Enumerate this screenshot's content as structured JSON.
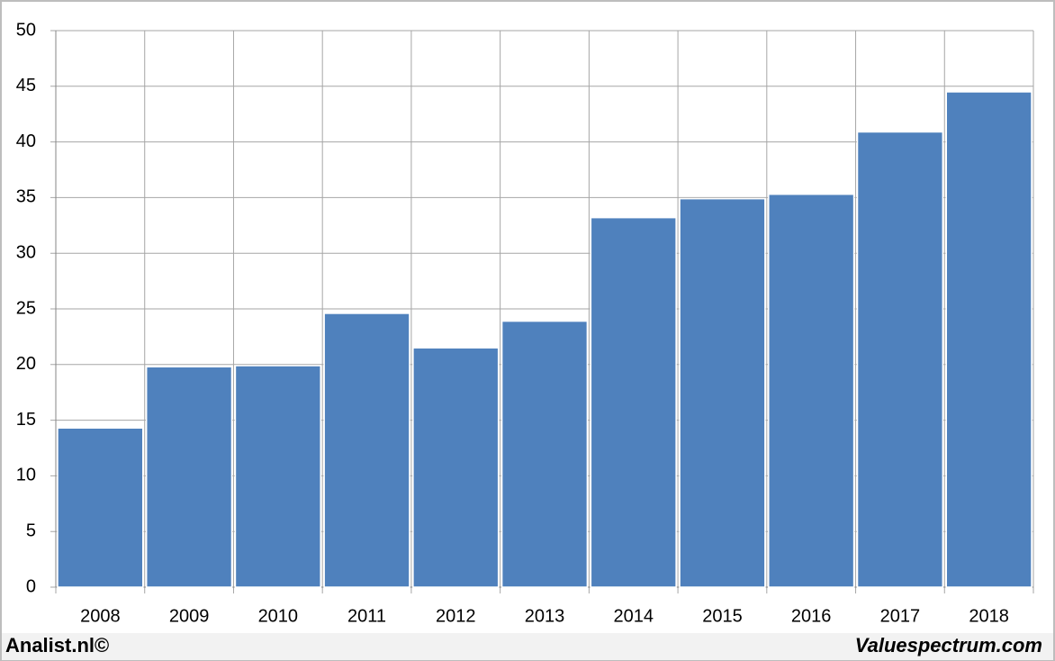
{
  "chart_data": {
    "type": "bar",
    "categories": [
      "2008",
      "2009",
      "2010",
      "2011",
      "2012",
      "2013",
      "2014",
      "2015",
      "2016",
      "2017",
      "2018"
    ],
    "values": [
      14.3,
      19.8,
      19.9,
      24.6,
      21.5,
      23.9,
      33.2,
      34.9,
      35.3,
      40.9,
      44.5
    ],
    "color": "#4f81bd",
    "ylim": [
      0,
      50
    ],
    "yticks": [
      0,
      5,
      10,
      15,
      20,
      25,
      30,
      35,
      40,
      45,
      50
    ],
    "grid": true
  },
  "footer": {
    "left": "Analist.nl©",
    "right": "Valuespectrum.com"
  }
}
